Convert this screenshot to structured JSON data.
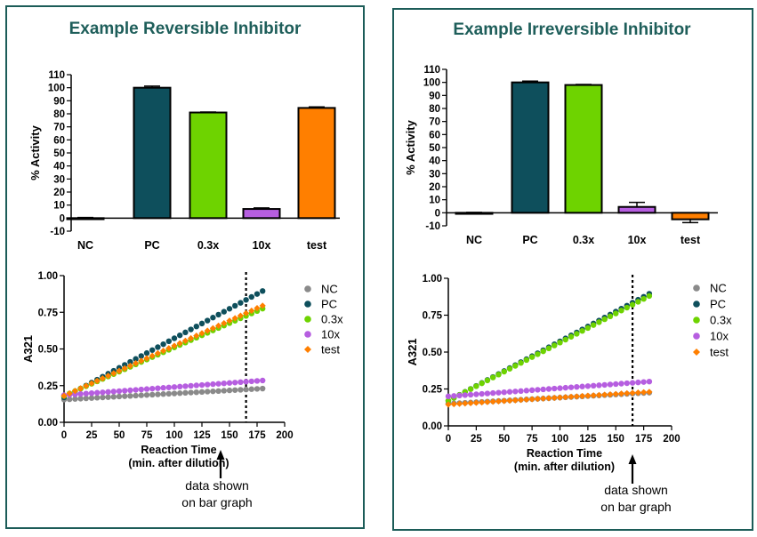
{
  "colors": {
    "title": "#1e5e5a",
    "frame": "#1c5c58",
    "NC": "#8a8a8a",
    "PC": "#0e4f5c",
    "0.3x": "#6ed300",
    "10x": "#b65ee0",
    "test": "#ff7f00"
  },
  "chart_data": [
    {
      "id": "left",
      "title": "Example Reversible Inhibitor",
      "bar": {
        "type": "bar",
        "categories": [
          "NC",
          "PC",
          "0.3x",
          "10x",
          "test"
        ],
        "values": [
          0,
          100,
          81,
          7,
          84.5
        ],
        "errors": [
          0.5,
          1.2,
          0.4,
          0.8,
          0.8
        ],
        "ylabel": "% Activity",
        "ylim": [
          -10,
          110
        ],
        "yticks": [
          "-10",
          "0",
          "10",
          "20",
          "30",
          "40",
          "50",
          "60",
          "70",
          "80",
          "90",
          "100",
          "110"
        ]
      },
      "line": {
        "type": "scatter",
        "xlabel_lines": [
          "Reaction Time",
          "(min. after dilution)"
        ],
        "ylabel": "A321",
        "xlim": [
          0,
          200
        ],
        "ylim": [
          0,
          1
        ],
        "xticks": [
          "0",
          "25",
          "50",
          "75",
          "100",
          "125",
          "150",
          "175",
          "200"
        ],
        "yticks": [
          "0.00",
          "0.25",
          "0.50",
          "0.75",
          "1.00"
        ],
        "x_start": 0,
        "x_step": 5,
        "x_end": 180,
        "marker_x": 165,
        "annotation": [
          "data shown",
          "on bar graph"
        ],
        "legend": "right",
        "series": [
          {
            "name": "NC",
            "y0": 0.155,
            "y1": 0.23
          },
          {
            "name": "PC",
            "y0": 0.17,
            "y1": 0.895
          },
          {
            "name": "0.3x",
            "y0": 0.18,
            "y1": 0.775
          },
          {
            "name": "10x",
            "y0": 0.185,
            "y1": 0.285
          },
          {
            "name": "test",
            "y0": 0.18,
            "y1": 0.795
          }
        ]
      }
    },
    {
      "id": "right",
      "title": "Example Irreversible Inhibitor",
      "bar": {
        "type": "bar",
        "categories": [
          "NC",
          "PC",
          "0.3x",
          "10x",
          "test"
        ],
        "values": [
          0,
          100,
          98,
          4.5,
          -5
        ],
        "errors": [
          0.3,
          1.0,
          0.4,
          3.5,
          2.5
        ],
        "ylabel": "% Activity",
        "ylim": [
          -10,
          110
        ],
        "yticks": [
          "-10",
          "0",
          "10",
          "20",
          "30",
          "40",
          "50",
          "60",
          "70",
          "80",
          "90",
          "100",
          "110"
        ]
      },
      "line": {
        "type": "scatter",
        "xlabel_lines": [
          "Reaction Time",
          "(min. after dilution)"
        ],
        "ylabel": "A321",
        "xlim": [
          0,
          200
        ],
        "ylim": [
          0,
          1
        ],
        "xticks": [
          "0",
          "25",
          "50",
          "75",
          "100",
          "125",
          "150",
          "175",
          "200"
        ],
        "yticks": [
          "0.00",
          "0.25",
          "0.50",
          "0.75",
          "1.00"
        ],
        "x_start": 0,
        "x_step": 5,
        "x_end": 180,
        "marker_x": 165,
        "annotation": [
          "data shown",
          "on bar graph"
        ],
        "legend": "right",
        "series": [
          {
            "name": "NC",
            "y0": 0.15,
            "y1": 0.225
          },
          {
            "name": "PC",
            "y0": 0.17,
            "y1": 0.895
          },
          {
            "name": "0.3x",
            "y0": 0.17,
            "y1": 0.88
          },
          {
            "name": "10x",
            "y0": 0.2,
            "y1": 0.3
          },
          {
            "name": "test",
            "y0": 0.145,
            "y1": 0.23
          }
        ]
      }
    }
  ]
}
